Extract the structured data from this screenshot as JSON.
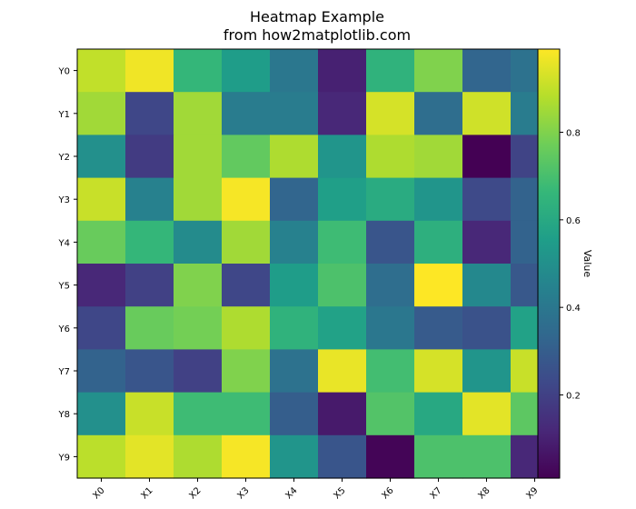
{
  "chart_data": {
    "type": "heatmap",
    "title": "Heatmap Example",
    "subtitle": "from how2matplotlib.com",
    "x_categories": [
      "X0",
      "X1",
      "X2",
      "X3",
      "X4",
      "X5",
      "X6",
      "X7",
      "X8",
      "X9"
    ],
    "y_categories": [
      "Y0",
      "Y1",
      "Y2",
      "Y3",
      "Y4",
      "Y5",
      "Y6",
      "Y7",
      "Y8",
      "Y9"
    ],
    "colormap": "viridis",
    "vmin": 0.01,
    "vmax": 0.99,
    "colorbar": {
      "label": "Value",
      "ticks": [
        "0.2",
        "0.4",
        "0.6",
        "0.8"
      ],
      "tick_values": [
        0.2,
        0.4,
        0.6,
        0.8
      ]
    },
    "values": [
      [
        0.9,
        0.97,
        0.66,
        0.55,
        0.4,
        0.1,
        0.64,
        0.8,
        0.33,
        0.38
      ],
      [
        0.85,
        0.22,
        0.85,
        0.42,
        0.42,
        0.12,
        0.93,
        0.36,
        0.92,
        0.42
      ],
      [
        0.5,
        0.18,
        0.85,
        0.75,
        0.87,
        0.52,
        0.87,
        0.85,
        0.01,
        0.21
      ],
      [
        0.91,
        0.44,
        0.85,
        0.98,
        0.33,
        0.56,
        0.61,
        0.52,
        0.23,
        0.32
      ],
      [
        0.76,
        0.66,
        0.48,
        0.85,
        0.44,
        0.68,
        0.27,
        0.63,
        0.12,
        0.32
      ],
      [
        0.12,
        0.2,
        0.8,
        0.22,
        0.55,
        0.71,
        0.36,
        0.99,
        0.47,
        0.28
      ],
      [
        0.22,
        0.76,
        0.78,
        0.87,
        0.64,
        0.57,
        0.4,
        0.29,
        0.26,
        0.57
      ],
      [
        0.32,
        0.27,
        0.2,
        0.8,
        0.38,
        0.96,
        0.69,
        0.93,
        0.52,
        0.91
      ],
      [
        0.5,
        0.91,
        0.68,
        0.68,
        0.3,
        0.08,
        0.72,
        0.6,
        0.95,
        0.74
      ],
      [
        0.89,
        0.95,
        0.87,
        0.98,
        0.52,
        0.27,
        0.02,
        0.71,
        0.71,
        0.12
      ]
    ]
  }
}
